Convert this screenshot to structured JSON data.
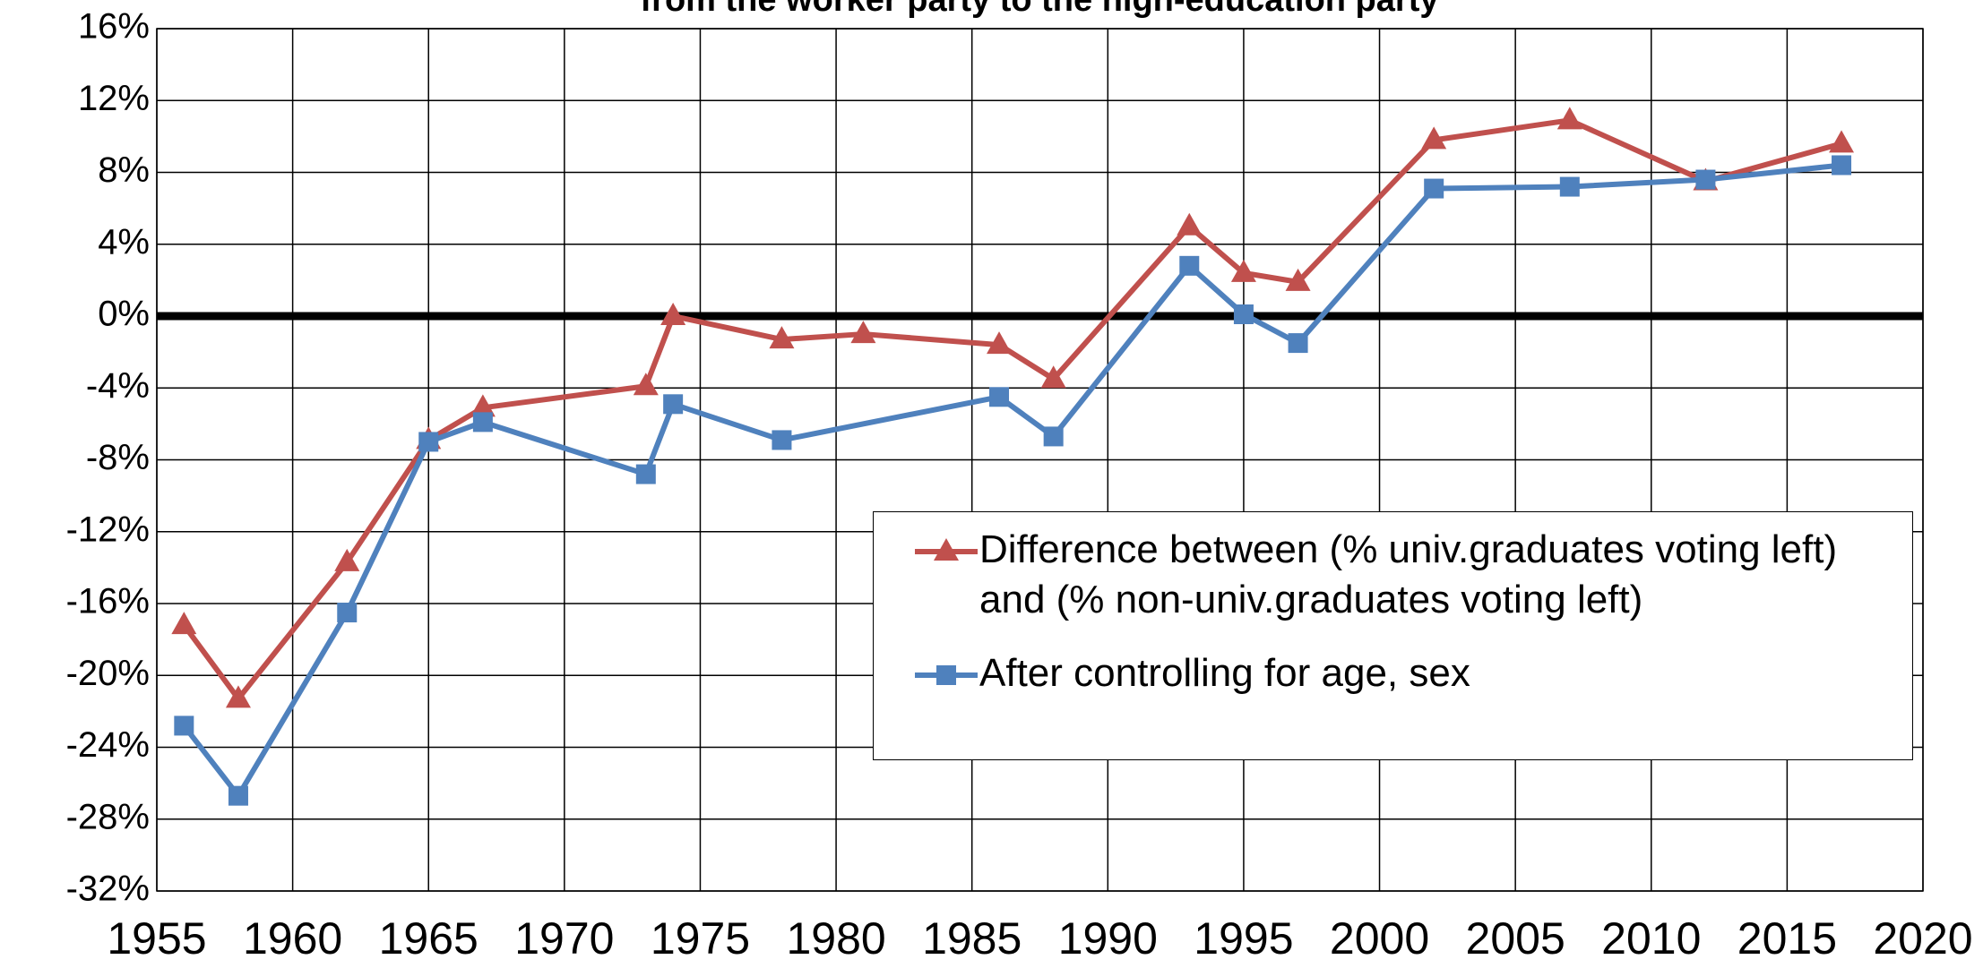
{
  "chart_data": {
    "type": "line",
    "title": "from the worker party to the high-education party",
    "xlim": [
      1955,
      2020
    ],
    "xticks": [
      1955,
      1960,
      1965,
      1970,
      1975,
      1980,
      1985,
      1990,
      1995,
      2000,
      2005,
      2010,
      2015,
      2020
    ],
    "ylim": [
      -32,
      16
    ],
    "yticks": [
      {
        "value": -32,
        "label": "-32%"
      },
      {
        "value": -28,
        "label": "-28%"
      },
      {
        "value": -24,
        "label": "-24%"
      },
      {
        "value": -20,
        "label": "-20%"
      },
      {
        "value": -16,
        "label": "-16%"
      },
      {
        "value": -12,
        "label": "-12%"
      },
      {
        "value": -8,
        "label": "-8%"
      },
      {
        "value": -4,
        "label": "-4%"
      },
      {
        "value": 0,
        "label": "0%"
      },
      {
        "value": 4,
        "label": "4%"
      },
      {
        "value": 8,
        "label": "8%"
      },
      {
        "value": 12,
        "label": "12%"
      },
      {
        "value": 16,
        "label": "16%"
      }
    ],
    "grid": true,
    "zero_line": true,
    "legend": "lower right",
    "series": [
      {
        "name": "Difference between (% univ.graduates voting left) and (% non-univ.graduates voting left)",
        "color": "#c0504d",
        "marker": "triangle",
        "x": [
          1956,
          1958,
          1962,
          1965,
          1967,
          1973,
          1974,
          1978,
          1981,
          1986,
          1988,
          1993,
          1995,
          1997,
          2002,
          2007,
          2012,
          2017
        ],
        "values": [
          -17.2,
          -21.3,
          -13.7,
          -6.9,
          -5.1,
          -3.9,
          0.0,
          -1.3,
          -1.0,
          -1.6,
          -3.5,
          5.0,
          2.4,
          1.9,
          9.8,
          10.9,
          7.5,
          9.6
        ]
      },
      {
        "name": "After controlling for age, sex",
        "color": "#4f81bd",
        "marker": "square",
        "x": [
          1956,
          1958,
          1962,
          1965,
          1967,
          1973,
          1974,
          1978,
          1986,
          1988,
          1993,
          1995,
          1997,
          2002,
          2007,
          2012,
          2017
        ],
        "values": [
          -22.8,
          -26.7,
          -16.5,
          -7.0,
          -5.9,
          -8.8,
          -4.9,
          -6.9,
          -4.5,
          -6.7,
          2.8,
          0.1,
          -1.5,
          7.1,
          7.2,
          7.6,
          8.4
        ]
      }
    ]
  }
}
